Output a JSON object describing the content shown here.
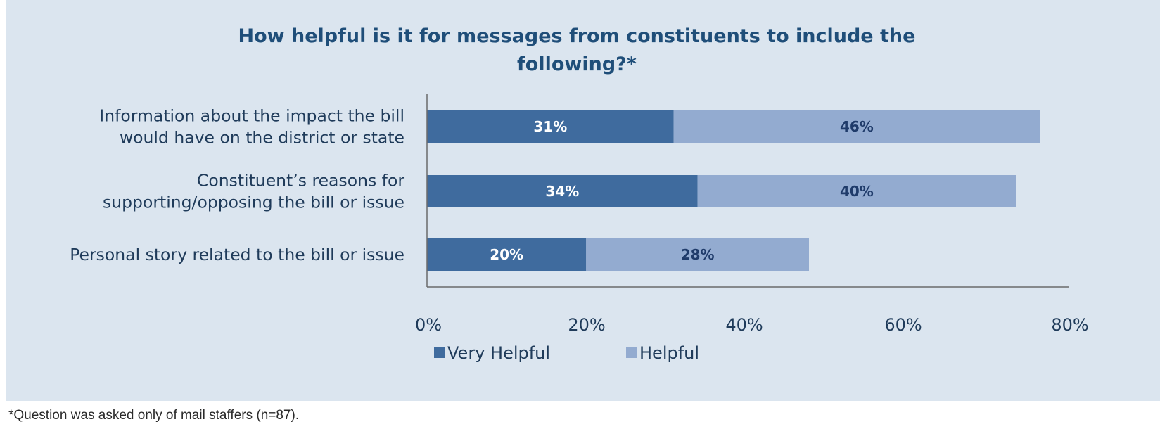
{
  "chart_data": {
    "type": "bar",
    "orientation": "horizontal",
    "stacked": true,
    "title": "How helpful is it for messages from constituents to include the following?*",
    "title_lines": [
      "How helpful is it for messages from constituents to include the",
      "following?*"
    ],
    "categories": [
      "Information about the impact the bill would have on the district or state",
      "Constituent’s reasons for supporting/opposing the bill or issue",
      "Personal story related to the bill or issue"
    ],
    "category_lines": [
      [
        "Information about the impact the bill",
        "would have on the district or state"
      ],
      [
        "Constituent’s reasons for",
        "supporting/opposing the bill or issue"
      ],
      [
        "Personal story related to the bill or issue"
      ]
    ],
    "series": [
      {
        "name": "Very Helpful",
        "values": [
          31,
          34,
          20
        ],
        "labels": [
          "31%",
          "34%",
          "20%"
        ],
        "color": "#3f6b9e",
        "label_color": "#ffffff"
      },
      {
        "name": "Helpful",
        "values": [
          46,
          40,
          28
        ],
        "labels": [
          "46%",
          "40%",
          "28%"
        ],
        "color": "#93abd0",
        "label_color": "#1f3b6a"
      }
    ],
    "xlim": [
      0,
      80
    ],
    "x_ticks": [
      0,
      20,
      40,
      60,
      80
    ],
    "x_tick_labels": [
      "0%",
      "20%",
      "40%",
      "60%",
      "80%"
    ],
    "xlabel": "",
    "ylabel": "",
    "grid": false,
    "legend_position": "bottom"
  },
  "footnote": "*Question was asked only of mail staffers (n=87).",
  "colors": {
    "background": "#dbe5ef",
    "axis": "#6b6b6b",
    "text": "#1f3b5a",
    "title": "#1f4e79"
  }
}
